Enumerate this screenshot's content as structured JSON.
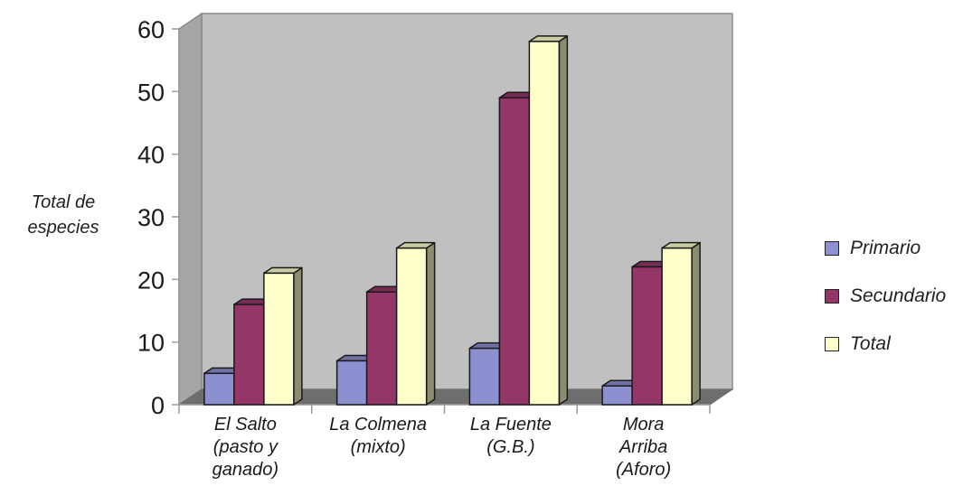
{
  "chart_data": {
    "type": "bar",
    "ylabel": [
      "Total de",
      "especies"
    ],
    "xlabel": "",
    "ylim": [
      0,
      60
    ],
    "yticks": [
      0,
      10,
      20,
      30,
      40,
      50,
      60
    ],
    "categories": [
      [
        "El Salto",
        "(pasto y",
        "ganado)"
      ],
      [
        "La Colmena",
        "(mixto)"
      ],
      [
        "La Fuente",
        "(G.B.)"
      ],
      [
        "Mora",
        "Arriba",
        "(Aforo)"
      ]
    ],
    "series": [
      {
        "name": "Primario",
        "values": [
          5,
          7,
          9,
          3
        ],
        "color": "#8c8fd0"
      },
      {
        "name": "Secundario",
        "values": [
          16,
          18,
          49,
          22
        ],
        "color": "#943768"
      },
      {
        "name": "Total",
        "values": [
          21,
          25,
          58,
          25
        ],
        "color": "#ffffcc"
      }
    ],
    "legend_position": "right",
    "grid": false,
    "style": "3d"
  }
}
